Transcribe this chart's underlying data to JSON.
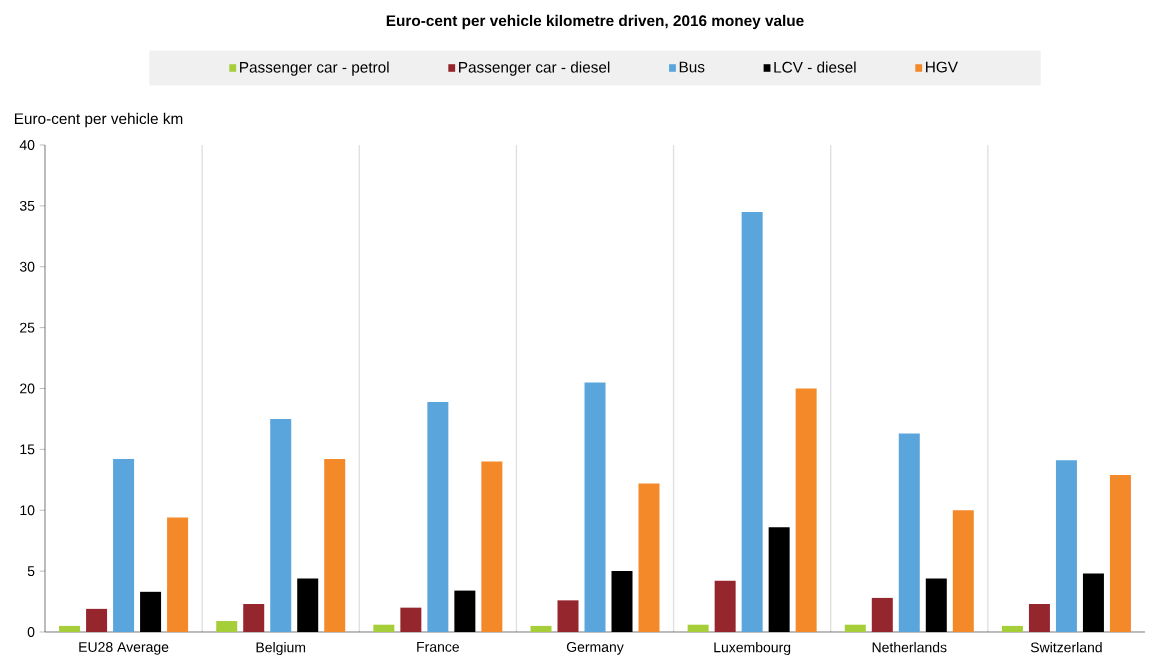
{
  "chart_data": {
    "type": "bar",
    "title": "Euro-cent per vehicle kilometre driven, 2016 money value",
    "ylabel": "Euro-cent per vehicle km",
    "categories": [
      "EU28 Average",
      "Belgium",
      "France",
      "Germany",
      "Luxembourg",
      "Netherlands",
      "Switzerland"
    ],
    "series": [
      {
        "name": "Passenger car - petrol",
        "color": "#a6ce39",
        "values": [
          0.5,
          0.9,
          0.6,
          0.5,
          0.6,
          0.6,
          0.5
        ]
      },
      {
        "name": "Passenger car - diesel",
        "color": "#96262d",
        "values": [
          1.9,
          2.3,
          2.0,
          2.6,
          4.2,
          2.8,
          2.3
        ]
      },
      {
        "name": "Bus",
        "color": "#5aa6dc",
        "values": [
          14.2,
          17.5,
          18.9,
          20.5,
          34.5,
          16.3,
          14.1
        ]
      },
      {
        "name": "LCV - diesel",
        "color": "#000000",
        "values": [
          3.3,
          4.4,
          3.4,
          5.0,
          8.6,
          4.4,
          4.8
        ]
      },
      {
        "name": "HGV",
        "color": "#f4892a",
        "values": [
          9.4,
          14.2,
          14.0,
          12.2,
          20.0,
          10.0,
          12.9
        ]
      }
    ],
    "ylim": [
      0,
      40
    ],
    "yticks": [
      0,
      5,
      10,
      15,
      20,
      25,
      30,
      35,
      40
    ],
    "grid": "x",
    "legend": "top"
  }
}
